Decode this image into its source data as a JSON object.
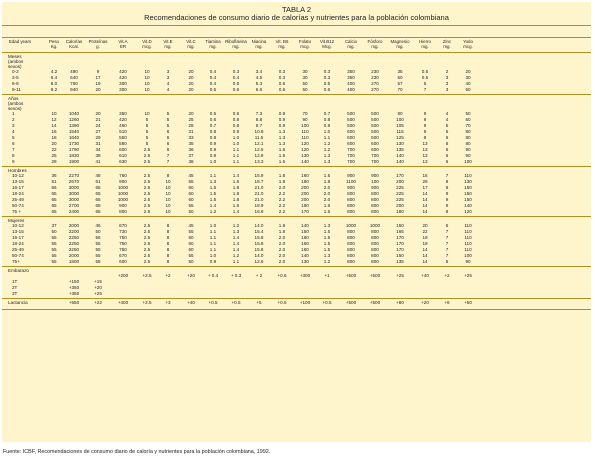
{
  "header": {
    "table_label": "TABLA 2",
    "title": "Recomendaciones de consumo diario de calorías y nutrientes para la población colombiana"
  },
  "columns": [
    {
      "name": "Edad years",
      "unit": ""
    },
    {
      "name": "Peso",
      "unit": "Kg."
    },
    {
      "name": "Calorías",
      "unit": "Kcal."
    },
    {
      "name": "Proteínas",
      "unit": "g."
    },
    {
      "name": "Vit.A",
      "unit": "ER"
    },
    {
      "name": "Vit.D",
      "unit": "mcg."
    },
    {
      "name": "Vit.E",
      "unit": "mg."
    },
    {
      "name": "Vit.C",
      "unit": "mg."
    },
    {
      "name": "Tiamina",
      "unit": "mg."
    },
    {
      "name": "Riboflavina",
      "unit": "mg."
    },
    {
      "name": "Niacina",
      "unit": "mg."
    },
    {
      "name": "Vit. B6",
      "unit": "mg."
    },
    {
      "name": "Folato",
      "unit": "mcg."
    },
    {
      "name": "Vit.B12",
      "unit": "Mcg."
    },
    {
      "name": "Calcio",
      "unit": "mg."
    },
    {
      "name": "Fósforo",
      "unit": "mg."
    },
    {
      "name": "Magnesio",
      "unit": "mg."
    },
    {
      "name": "Hierro",
      "unit": "mg."
    },
    {
      "name": "Zinc",
      "unit": "mg."
    },
    {
      "name": "Yodo",
      "unit": "mcg."
    }
  ],
  "sections": [
    {
      "label": "Meses (ambos sexos)",
      "rows": [
        [
          "0-2",
          "4.2",
          "490",
          "9",
          "420",
          "10",
          "3",
          "20",
          "0.4",
          "0.3",
          "3.4",
          "0.3",
          "30",
          "0.3",
          "350",
          "230",
          "35",
          "0.5",
          "2",
          "20"
        ],
        [
          "3-5",
          "6.4",
          "640",
          "17",
          "420",
          "10",
          "3",
          "20",
          "0.4",
          "0.4",
          "4.5",
          "0.3",
          "30",
          "0.3",
          "350",
          "230",
          "50",
          "0.5",
          "3",
          "30"
        ],
        [
          "6-8",
          "8.0",
          "760",
          "19",
          "300",
          "10",
          "4",
          "20",
          "0.4",
          "0.5",
          "5.3",
          "0.6",
          "50",
          "0.5",
          "400",
          "270",
          "57",
          "5",
          "3",
          "40"
        ],
        [
          "9-11",
          "9.2",
          "940",
          "20",
          "300",
          "10",
          "4",
          "20",
          "0.5",
          "0.6",
          "6.6",
          "0.6",
          "50",
          "0.6",
          "400",
          "270",
          "70",
          "7",
          "3",
          "50"
        ]
      ]
    },
    {
      "label": "Años (ambos sexos)",
      "rows": [
        [
          "1",
          "10",
          "1040",
          "20",
          "350",
          "10",
          "5",
          "20",
          "0.5",
          "0.6",
          "7.3",
          "0.9",
          "70",
          "0.7",
          "500",
          "500",
          "80",
          "9",
          "4",
          "50"
        ],
        [
          "2",
          "12",
          "1260",
          "21",
          "420",
          "5",
          "5",
          "25",
          "0.6",
          "0.8",
          "8.8",
          "0.9",
          "90",
          "0.8",
          "500",
          "500",
          "100",
          "9",
          "4",
          "60"
        ],
        [
          "3",
          "14",
          "1390",
          "24",
          "460",
          "5",
          "5",
          "28",
          "0.7",
          "0.8",
          "9.7",
          "0.9",
          "100",
          "0.9",
          "500",
          "500",
          "105",
          "9",
          "5",
          "70"
        ],
        [
          "4",
          "16",
          "1540",
          "27",
          "510",
          "5",
          "6",
          "31",
          "0.8",
          "0.9",
          "10.8",
          "1.3",
          "110",
          "1.0",
          "600",
          "500",
          "115",
          "9",
          "5",
          "80"
        ],
        [
          "5",
          "18",
          "1640",
          "29",
          "550",
          "5",
          "6",
          "33",
          "0.8",
          "1.0",
          "11.5",
          "1.3",
          "110",
          "1.1",
          "600",
          "500",
          "125",
          "9",
          "6",
          "80"
        ],
        [
          "6",
          "20",
          "1730",
          "31",
          "580",
          "5",
          "6",
          "35",
          "0.9",
          "1.0",
          "12.1",
          "1.3",
          "120",
          "1.2",
          "600",
          "600",
          "130",
          "13",
          "6",
          "80"
        ],
        [
          "7",
          "22",
          "1790",
          "34",
          "600",
          "2.5",
          "6",
          "36",
          "0.9",
          "1.1",
          "12.5",
          "1.6",
          "120",
          "1.2",
          "700",
          "600",
          "135",
          "13",
          "6",
          "90"
        ],
        [
          "8",
          "25",
          "1830",
          "38",
          "610",
          "2.5",
          "7",
          "37",
          "0.9",
          "1.1",
          "12.8",
          "1.6",
          "130",
          "1.3",
          "700",
          "700",
          "140",
          "13",
          "6",
          "90"
        ],
        [
          "9",
          "28",
          "1900",
          "41",
          "630",
          "2.5",
          "7",
          "38",
          "1.0",
          "1.1",
          "13.3",
          "1.6",
          "140",
          "1.3",
          "700",
          "700",
          "140",
          "13",
          "6",
          "100"
        ]
      ]
    },
    {
      "label": "Hombres",
      "rows": [
        [
          "10-12",
          "36",
          "2270",
          "48",
          "760",
          "2.5",
          "8",
          "45",
          "1.1",
          "1.4",
          "15.9",
          "1.8",
          "160",
          "1.5",
          "900",
          "900",
          "170",
          "16",
          "7",
          "110"
        ],
        [
          "13-15",
          "51",
          "2670",
          "61",
          "900",
          "2.5",
          "10",
          "55",
          "1.3",
          "1.6",
          "18.7",
          "1.8",
          "190",
          "1.8",
          "1100",
          "100",
          "200",
          "29",
          "8",
          "130"
        ],
        [
          "16-17",
          "66",
          "3000",
          "65",
          "1000",
          "2.5",
          "10",
          "60",
          "1.5",
          "1.8",
          "21.0",
          "2.0",
          "200",
          "2.0",
          "900",
          "900",
          "225",
          "17",
          "9",
          "150"
        ],
        [
          "18-24",
          "65",
          "3000",
          "65",
          "1000",
          "2.5",
          "10",
          "60",
          "1.5",
          "1.8",
          "21.0",
          "2.2",
          "200",
          "2.0",
          "800",
          "800",
          "225",
          "14",
          "9",
          "150"
        ],
        [
          "25-49",
          "65",
          "3000",
          "65",
          "1000",
          "2.5",
          "10",
          "60",
          "1.5",
          "1.8",
          "21.0",
          "2.2",
          "200",
          "2.0",
          "800",
          "800",
          "225",
          "14",
          "9",
          "150"
        ],
        [
          "50-74",
          "65",
          "2700",
          "65",
          "900",
          "2.5",
          "10",
          "55",
          "1.4",
          "1.6",
          "18.9",
          "2.2",
          "190",
          "1.6",
          "800",
          "800",
          "200",
          "14",
          "9",
          "140"
        ],
        [
          "75 +",
          "65",
          "2400",
          "65",
          "800",
          "2.5",
          "10",
          "50",
          "1.2",
          "1.4",
          "16.8",
          "2.2",
          "170",
          "1.6",
          "800",
          "800",
          "180",
          "14",
          "8",
          "120"
        ]
      ]
    },
    {
      "label": "Mujeres",
      "rows": [
        [
          "10-12",
          "37",
          "2000",
          "46",
          "670",
          "2.5",
          "8",
          "45",
          "1.0",
          "1.2",
          "14.0",
          "1.8",
          "140",
          "1.3",
          "1000",
          "1000",
          "150",
          "20",
          "6",
          "110"
        ],
        [
          "13-15",
          "50",
          "2200",
          "50",
          "730",
          "2.5",
          "8",
          "55",
          "1.1",
          "1.3",
          "15.4",
          "1.8",
          "150",
          "1.5",
          "800",
          "800",
          "165",
          "22",
          "7",
          "110"
        ],
        [
          "16-17",
          "55",
          "2250",
          "56",
          "750",
          "2.5",
          "8",
          "60",
          "1.1",
          "1.4",
          "15.8",
          "2.0",
          "160",
          "1.5",
          "800",
          "800",
          "170",
          "19",
          "7",
          "110"
        ],
        [
          "18-24",
          "55",
          "2250",
          "55",
          "750",
          "2.5",
          "8",
          "60",
          "1.1",
          "1.4",
          "15.8",
          "2.0",
          "160",
          "1.5",
          "800",
          "800",
          "170",
          "19",
          "7",
          "110"
        ],
        [
          "25-49",
          "55",
          "2250",
          "55",
          "750",
          "2.5",
          "8",
          "60",
          "1.1",
          "1.4",
          "15.8",
          "2.0",
          "160",
          "1.5",
          "800",
          "800",
          "170",
          "14",
          "7",
          "110"
        ],
        [
          "50-74",
          "55",
          "2000",
          "55",
          "670",
          "2.5",
          "8",
          "55",
          "1.0",
          "1.2",
          "14.0",
          "2.0",
          "140",
          "1.3",
          "800",
          "800",
          "150",
          "14",
          "7",
          "100"
        ],
        [
          "75+",
          "55",
          "1800",
          "55",
          "600",
          "2.5",
          "8",
          "50",
          "0.9",
          "1.1",
          "12.6",
          "2.0",
          "130",
          "1.2",
          "800",
          "800",
          "135",
          "14",
          "5",
          "90"
        ]
      ]
    },
    {
      "label": "Embarazo",
      "rows": [
        [
          "",
          "",
          "",
          "",
          "+200",
          "+2.5",
          "+2",
          "+20",
          "+ 0.4",
          "+ 0.3",
          "+ 2",
          "+0.6",
          "+300",
          "+1",
          "+500",
          "+500",
          "+25",
          "+40",
          "+2",
          "+25"
        ],
        [
          "1T",
          "",
          "+150",
          "+15",
          "",
          "",
          "",
          "",
          "",
          "",
          "",
          "",
          "",
          "",
          "",
          "",
          "",
          "",
          "",
          ""
        ],
        [
          "2T",
          "",
          "+350",
          "+20",
          "",
          "",
          "",
          "",
          "",
          "",
          "",
          "",
          "",
          "",
          "",
          "",
          "",
          "",
          "",
          ""
        ],
        [
          "3T",
          "",
          "+350",
          "+25",
          "",
          "",
          "",
          "",
          "",
          "",
          "",
          "",
          "",
          "",
          "",
          "",
          "",
          "",
          "",
          ""
        ]
      ]
    },
    {
      "label": "Lactancia",
      "rows": [
        [
          "",
          "",
          "+550",
          "+22",
          "+400",
          "+2.5",
          "+3",
          "+40",
          "+0.5",
          "+0.5",
          "+5",
          "+0.6",
          "+100",
          "+0.5",
          "+500",
          "+500",
          "+80",
          "+20",
          "+6",
          "+50"
        ]
      ]
    }
  ],
  "footer": {
    "source": "Fuente: ICBF, Recomendaciones de consumo diario de caloría y nutrientes para la población colombiana, 1992."
  },
  "colors": {
    "background": "#fff5cc",
    "rule": "#b38f1f",
    "text": "#222222"
  }
}
